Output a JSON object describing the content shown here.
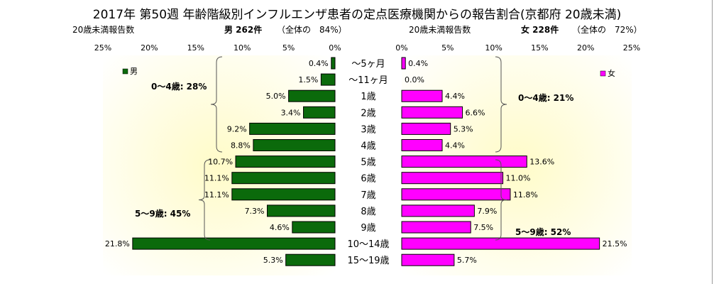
{
  "title": "2017年 第50週 年齢階級別インフルエンザ患者の定点医療機関からの報告割合(京都府 20歳未満)",
  "header": {
    "left_axis_title": "20歳未満報告数",
    "male_summary": "男 262件",
    "male_share": "（全体の　84%）",
    "right_axis_title": "20歳未満報告数",
    "female_summary": "女 228件",
    "female_share": "（全体の　72%）"
  },
  "colors": {
    "male": "#0b6a0b",
    "female": "#ff00ff",
    "background_gradient_center": "#fffbc8",
    "background_gradient_edge": "#ffffff",
    "label_box_bg": "#ffffff"
  },
  "chart_data": {
    "type": "bar",
    "orientation": "horizontal",
    "layout": "back-to-back",
    "categories": [
      "～5ヶ月",
      "～11ヶ月",
      "1歳",
      "2歳",
      "3歳",
      "4歳",
      "5歳",
      "6歳",
      "7歳",
      "8歳",
      "9歳",
      "10～14歳",
      "15～19歳"
    ],
    "series": [
      {
        "name": "男",
        "values": [
          0.4,
          1.5,
          5.0,
          3.4,
          9.2,
          8.8,
          10.7,
          11.1,
          11.1,
          7.3,
          4.6,
          21.8,
          5.3
        ],
        "labels": [
          "0.4%",
          "1.5%",
          "5.0%",
          "3.4%",
          "9.2%",
          "8.8%",
          "10.7%",
          "11.1%",
          "11.1%",
          "7.3%",
          "4.6%",
          "21.8%",
          "5.3%"
        ]
      },
      {
        "name": "女",
        "values": [
          0.4,
          0.0,
          4.4,
          6.6,
          5.3,
          4.4,
          13.6,
          11.0,
          11.8,
          7.9,
          7.5,
          21.5,
          5.7
        ],
        "labels": [
          "0.4%",
          "0.0%",
          "4.4%",
          "6.6%",
          "5.3%",
          "4.4%",
          "13.6%",
          "11.0%",
          "11.8%",
          "7.9%",
          "7.5%",
          "21.5%",
          "5.7%"
        ]
      }
    ],
    "left_ticks": [
      "25%",
      "20%",
      "15%",
      "10%",
      "5%",
      "0%"
    ],
    "right_ticks": [
      "0%",
      "5%",
      "10%",
      "15%",
      "20%",
      "25%"
    ],
    "xlim": [
      0,
      25
    ],
    "legend": {
      "male": "男",
      "female": "女",
      "male_position": "top-left",
      "female_position": "top-right"
    },
    "annotations": {
      "male_0_4": "0～4歳: 28%",
      "male_5_9": "5～9歳: 45%",
      "female_0_4": "0～4歳: 21%",
      "female_5_9": "5～9歳: 52%"
    }
  }
}
